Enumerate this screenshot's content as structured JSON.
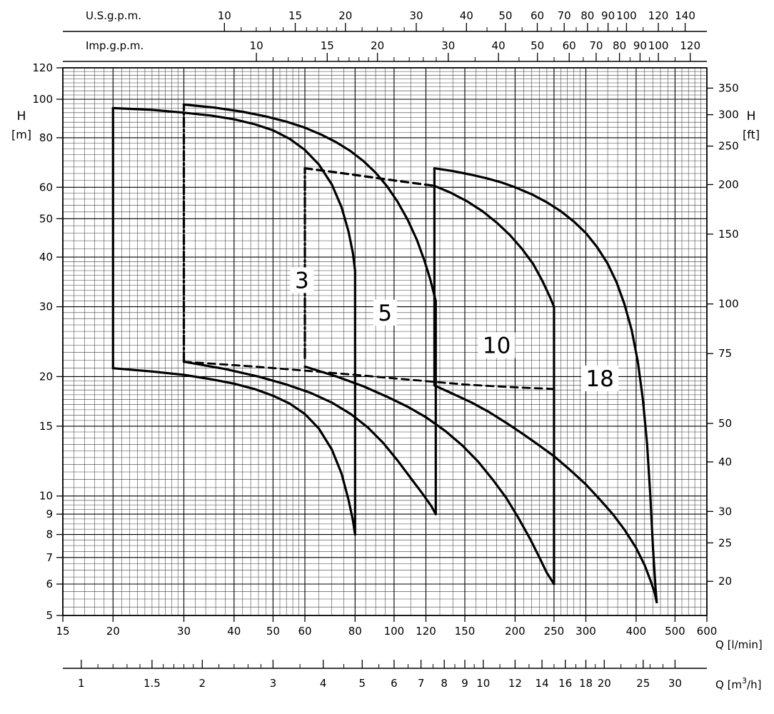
{
  "chart_data": {
    "type": "line",
    "title": "",
    "scale": "log-log",
    "grid": "on",
    "x_axis": {
      "label": "Q [l/min]",
      "min": 15,
      "max": 600,
      "ticks": [
        15,
        20,
        30,
        40,
        50,
        60,
        80,
        100,
        120,
        150,
        200,
        250,
        300,
        400,
        500,
        600
      ]
    },
    "x_axis_m3h": {
      "label_prefix": "Q [m",
      "label_sup": "3",
      "label_suffix": "/h]",
      "lmin_per_unit": 16.6667,
      "ticks": [
        1,
        1.5,
        2,
        3,
        4,
        5,
        6,
        7,
        8,
        9,
        10,
        12,
        14,
        16,
        18,
        20,
        25,
        30
      ],
      "minor_ticks": [
        1.1,
        1.2,
        1.3,
        1.4,
        1.6,
        1.7,
        1.8,
        1.9,
        2.2,
        2.4,
        2.6,
        2.8,
        3.5,
        4.5,
        5.5,
        6.5,
        7.5,
        8.5,
        9.5,
        11,
        13,
        15,
        17,
        19,
        22,
        24,
        26,
        28
      ]
    },
    "x_axis_usgpm": {
      "label": "U.S.g.p.m.",
      "lmin_per_unit": 3.7854,
      "ticks": [
        10,
        15,
        20,
        30,
        40,
        50,
        60,
        70,
        80,
        90,
        100,
        120,
        140
      ],
      "minor_ticks": [
        11,
        12,
        13,
        14,
        16,
        17,
        18,
        19,
        22,
        24,
        26,
        28,
        35,
        45,
        55,
        65,
        75,
        85,
        95,
        110,
        130
      ]
    },
    "x_axis_impgpm": {
      "label": "Imp.g.p.m.",
      "lmin_per_unit": 4.5461,
      "ticks": [
        10,
        15,
        20,
        30,
        40,
        50,
        60,
        70,
        80,
        90,
        100,
        120
      ],
      "minor_ticks": [
        11,
        12,
        13,
        14,
        16,
        17,
        18,
        19,
        22,
        24,
        26,
        28,
        35,
        45,
        55,
        65,
        75,
        85,
        95,
        110
      ]
    },
    "y_axis_left": {
      "label_line1": "H",
      "label_line2": "[m]",
      "min": 5,
      "max": 120,
      "ticks": [
        5,
        6,
        7,
        8,
        9,
        10,
        15,
        20,
        30,
        40,
        50,
        60,
        80,
        100,
        120
      ]
    },
    "y_axis_right": {
      "label_line1": "H",
      "label_line2": "[ft]",
      "m_per_ft": 0.3048,
      "ticks": [
        20,
        25,
        30,
        40,
        50,
        75,
        100,
        150,
        200,
        250,
        300,
        350
      ]
    },
    "families": [
      {
        "label": "3",
        "label_pos": [
          59,
          35
        ],
        "segments": [
          {
            "name": "min-flow-line",
            "style": "solid",
            "points": [
              [
                20,
                21
              ],
              [
                20,
                95
              ]
            ]
          },
          {
            "name": "max-head-curve",
            "style": "solid",
            "points": [
              [
                20,
                95
              ],
              [
                25,
                94
              ],
              [
                30,
                92.5
              ],
              [
                35,
                91
              ],
              [
                40,
                89
              ],
              [
                45,
                86.5
              ],
              [
                50,
                83.5
              ],
              [
                55,
                79.5
              ],
              [
                60,
                74.5
              ],
              [
                65,
                68.5
              ],
              [
                70,
                61
              ],
              [
                74,
                53.5
              ],
              [
                77,
                46.5
              ],
              [
                79,
                41
              ],
              [
                80,
                37
              ]
            ]
          },
          {
            "name": "max-flow-line",
            "style": "solid",
            "points": [
              [
                80,
                37
              ],
              [
                80,
                8
              ]
            ]
          },
          {
            "name": "min-head-curve",
            "style": "solid",
            "points": [
              [
                20,
                21
              ],
              [
                25,
                20.6
              ],
              [
                30,
                20.2
              ],
              [
                35,
                19.7
              ],
              [
                40,
                19.2
              ],
              [
                45,
                18.6
              ],
              [
                50,
                17.9
              ],
              [
                55,
                17.1
              ],
              [
                60,
                16.1
              ],
              [
                65,
                14.8
              ],
              [
                70,
                13.1
              ],
              [
                74,
                11.4
              ],
              [
                77,
                9.8
              ],
              [
                79,
                8.7
              ],
              [
                80,
                8
              ]
            ]
          }
        ]
      },
      {
        "label": "5",
        "label_pos": [
          95,
          29
        ],
        "segments": [
          {
            "name": "min-flow-line",
            "style": "dashdot",
            "points": [
              [
                30,
                21.8
              ],
              [
                30,
                97
              ]
            ]
          },
          {
            "name": "max-head-curve",
            "style": "solid",
            "points": [
              [
                30,
                97
              ],
              [
                36,
                95.2
              ],
              [
                42,
                93
              ],
              [
                48,
                90.5
              ],
              [
                54,
                87.8
              ],
              [
                60,
                84.8
              ],
              [
                66,
                81.4
              ],
              [
                72,
                77.8
              ],
              [
                78,
                74
              ],
              [
                84,
                69.8
              ],
              [
                90,
                65.3
              ],
              [
                96,
                60.4
              ],
              [
                102,
                55.2
              ],
              [
                108,
                49.8
              ],
              [
                114,
                44.2
              ],
              [
                119,
                39.2
              ],
              [
                123,
                35.2
              ],
              [
                126,
                32
              ],
              [
                127,
                31
              ]
            ]
          },
          {
            "name": "max-flow-line",
            "style": "solid",
            "points": [
              [
                127,
                31
              ],
              [
                127,
                9
              ]
            ]
          },
          {
            "name": "min-head-curve",
            "style": "solid",
            "points": [
              [
                30,
                21.8
              ],
              [
                38,
                20.9
              ],
              [
                46,
                20
              ],
              [
                54,
                19.1
              ],
              [
                62,
                18.2
              ],
              [
                70,
                17.2
              ],
              [
                78,
                16.1
              ],
              [
                86,
                14.9
              ],
              [
                94,
                13.6
              ],
              [
                102,
                12.3
              ],
              [
                110,
                11.1
              ],
              [
                118,
                10.1
              ],
              [
                124,
                9.4
              ],
              [
                127,
                9
              ]
            ]
          }
        ]
      },
      {
        "label": "10",
        "label_pos": [
          180,
          24
        ],
        "segments": [
          {
            "name": "min-flow-line",
            "style": "dashdot",
            "points": [
              [
                60,
                22.3
              ],
              [
                60,
                67
              ]
            ]
          },
          {
            "name": "max-head-dashed",
            "style": "dashed",
            "points": [
              [
                60,
                67
              ],
              [
                72,
                65.4
              ],
              [
                84,
                64
              ],
              [
                96,
                62.8
              ],
              [
                108,
                61.8
              ],
              [
                120,
                60.9
              ],
              [
                126,
                60.5
              ]
            ]
          },
          {
            "name": "max-head-curve",
            "style": "solid",
            "points": [
              [
                126,
                60.5
              ],
              [
                138,
                58.2
              ],
              [
                152,
                55.3
              ],
              [
                166,
                52.2
              ],
              [
                180,
                48.9
              ],
              [
                194,
                45.5
              ],
              [
                208,
                42
              ],
              [
                222,
                38.4
              ],
              [
                234,
                34.8
              ],
              [
                244,
                31.8
              ],
              [
                250,
                30
              ]
            ]
          },
          {
            "name": "max-flow-line",
            "style": "solid",
            "points": [
              [
                250,
                30
              ],
              [
                250,
                6
              ]
            ]
          },
          {
            "name": "min-head-curve",
            "style": "solid",
            "points": [
              [
                60,
                21.2
              ],
              [
                72,
                20
              ],
              [
                84,
                18.9
              ],
              [
                96,
                17.8
              ],
              [
                108,
                16.8
              ],
              [
                120,
                15.8
              ],
              [
                134,
                14.6
              ],
              [
                148,
                13.4
              ],
              [
                162,
                12.2
              ],
              [
                176,
                11
              ],
              [
                190,
                9.9
              ],
              [
                204,
                8.8
              ],
              [
                218,
                7.8
              ],
              [
                230,
                7
              ],
              [
                240,
                6.4
              ],
              [
                250,
                6
              ]
            ]
          }
        ]
      },
      {
        "label": "18",
        "label_pos": [
          325,
          19.8
        ],
        "segments": [
          {
            "name": "min-flow-line",
            "style": "solid",
            "points": [
              [
                126,
                19
              ],
              [
                126,
                67
              ]
            ]
          },
          {
            "name": "max-head-curve",
            "style": "solid",
            "points": [
              [
                126,
                67
              ],
              [
                140,
                65.9
              ],
              [
                155,
                64.6
              ],
              [
                170,
                63.2
              ],
              [
                185,
                61.7
              ],
              [
                200,
                60
              ],
              [
                220,
                57.6
              ],
              [
                240,
                55
              ],
              [
                260,
                52.2
              ],
              [
                280,
                49.2
              ],
              [
                300,
                46
              ],
              [
                320,
                42.4
              ],
              [
                340,
                38.5
              ],
              [
                358,
                34.5
              ],
              [
                374,
                30.5
              ],
              [
                390,
                26.2
              ],
              [
                404,
                21.8
              ],
              [
                416,
                17.5
              ],
              [
                426,
                13.5
              ],
              [
                434,
                10
              ],
              [
                441,
                7.3
              ],
              [
                447,
                5.9
              ],
              [
                450,
                5.4
              ]
            ]
          },
          {
            "name": "min-head-curve",
            "style": "solid",
            "points": [
              [
                126,
                19
              ],
              [
                140,
                18.1
              ],
              [
                156,
                17.2
              ],
              [
                172,
                16.3
              ],
              [
                190,
                15.3
              ],
              [
                210,
                14.3
              ],
              [
                230,
                13.4
              ],
              [
                250,
                12.6
              ],
              [
                275,
                11.6
              ],
              [
                300,
                10.7
              ],
              [
                325,
                9.8
              ],
              [
                350,
                9
              ],
              [
                375,
                8.2
              ],
              [
                400,
                7.4
              ],
              [
                420,
                6.7
              ],
              [
                435,
                6.1
              ],
              [
                445,
                5.7
              ],
              [
                450,
                5.4
              ]
            ]
          }
        ]
      }
    ],
    "boundaries": [
      {
        "name": "min-head-dashed-boundary",
        "style": "dashed",
        "points": [
          [
            30,
            21.8
          ],
          [
            45,
            21.2
          ],
          [
            60,
            20.7
          ],
          [
            80,
            20.2
          ],
          [
            100,
            19.8
          ],
          [
            126,
            19.4
          ],
          [
            150,
            19.1
          ],
          [
            180,
            18.9
          ],
          [
            210,
            18.75
          ],
          [
            240,
            18.65
          ],
          [
            250,
            18.6
          ]
        ]
      }
    ],
    "colors": {
      "line": "#000000",
      "grid_minor": "#3a3a3a",
      "grid_major": "#000000",
      "background": "#ffffff"
    }
  }
}
